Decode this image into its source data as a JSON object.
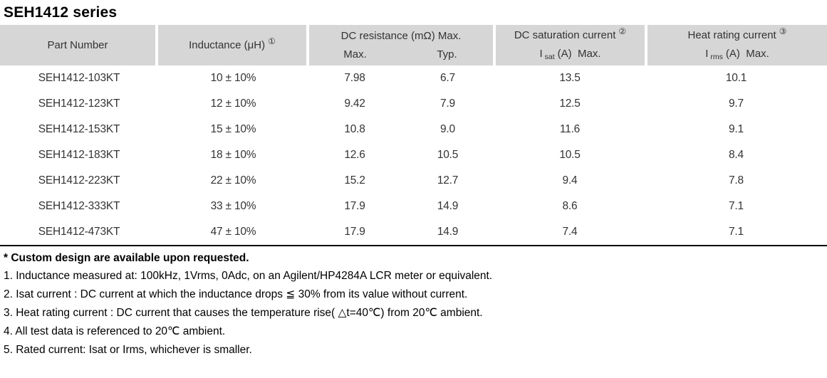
{
  "title": "SEH1412 series",
  "colors": {
    "header_bg": "#d6d6d6",
    "table_text": "#333333",
    "table_bottom_border": "#000000",
    "page_bg": "#ffffff"
  },
  "table": {
    "header": {
      "part_number": "Part Number",
      "inductance_label": "Inductance (μH)",
      "inductance_note_ref": "①",
      "dc_resistance": {
        "group_label": "DC resistance (mΩ) Max.",
        "sub_max": "Max.",
        "sub_typ": "Typ."
      },
      "dc_saturation": {
        "group_label": "DC saturation current",
        "note_ref": "②",
        "symbol_base": "I",
        "symbol_sub": "sat",
        "unit_label": "(A)  Max."
      },
      "heat_rating": {
        "group_label": "Heat rating current",
        "note_ref": "③",
        "symbol_base": "I",
        "symbol_sub": "rms",
        "unit_label": "(A)  Max."
      }
    },
    "rows": [
      {
        "part_number": "SEH1412-103KT",
        "inductance": "10 ± 10%",
        "dcr_max": "7.98",
        "dcr_typ": "6.7",
        "isat_max": "13.5",
        "irms_max": "10.1"
      },
      {
        "part_number": "SEH1412-123KT",
        "inductance": "12 ± 10%",
        "dcr_max": "9.42",
        "dcr_typ": "7.9",
        "isat_max": "12.5",
        "irms_max": "9.7"
      },
      {
        "part_number": "SEH1412-153KT",
        "inductance": "15 ± 10%",
        "dcr_max": "10.8",
        "dcr_typ": "9.0",
        "isat_max": "11.6",
        "irms_max": "9.1"
      },
      {
        "part_number": "SEH1412-183KT",
        "inductance": "18 ± 10%",
        "dcr_max": "12.6",
        "dcr_typ": "10.5",
        "isat_max": "10.5",
        "irms_max": "8.4"
      },
      {
        "part_number": "SEH1412-223KT",
        "inductance": "22 ± 10%",
        "dcr_max": "15.2",
        "dcr_typ": "12.7",
        "isat_max": "9.4",
        "irms_max": "7.8"
      },
      {
        "part_number": "SEH1412-333KT",
        "inductance": "33 ± 10%",
        "dcr_max": "17.9",
        "dcr_typ": "14.9",
        "isat_max": "8.6",
        "irms_max": "7.1"
      },
      {
        "part_number": "SEH1412-473KT",
        "inductance": "47 ± 10%",
        "dcr_max": "17.9",
        "dcr_typ": "14.9",
        "isat_max": "7.4",
        "irms_max": "7.1"
      }
    ]
  },
  "footnotes": {
    "custom_design": "* Custom design are available upon requested.",
    "items": [
      "1. Inductance measured at: 100kHz, 1Vrms, 0Adc, on an Agilent/HP4284A LCR meter or equivalent.",
      "2. Isat current : DC current at which the inductance drops ≦ 30% from its value without current.",
      "3. Heat rating current : DC current that causes the temperature rise( △t=40℃) from 20℃ ambient.",
      "4. All test data is referenced to 20℃ ambient.",
      "5. Rated current: Isat or Irms, whichever is smaller."
    ]
  }
}
